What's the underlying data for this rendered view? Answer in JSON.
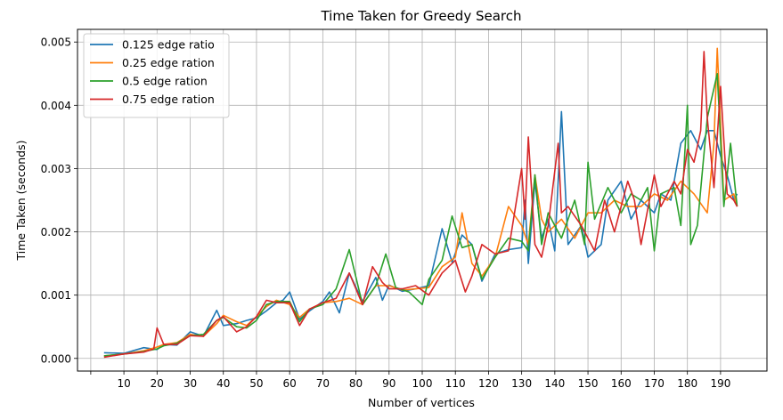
{
  "chart_data": {
    "type": "line",
    "title": "Time Taken for Greedy Search",
    "xlabel": "Number of vertices",
    "ylabel": "Time Taken (seconds)",
    "xlim": [
      -4,
      204
    ],
    "ylim": [
      -0.0002,
      0.0052
    ],
    "x_ticks": [
      0,
      10,
      20,
      30,
      40,
      50,
      60,
      70,
      80,
      90,
      100,
      110,
      120,
      130,
      140,
      150,
      160,
      170,
      180,
      190
    ],
    "x_tick_labels": [
      "",
      "10",
      "20",
      "30",
      "40",
      "50",
      "60",
      "70",
      "80",
      "90",
      "100",
      "110",
      "120",
      "130",
      "140",
      "150",
      "160",
      "170",
      "180",
      "190"
    ],
    "y_ticks": [
      0,
      0.001,
      0.002,
      0.003,
      0.004,
      0.005
    ],
    "y_tick_labels": [
      "0.000",
      "0.001",
      "0.002",
      "0.003",
      "0.004",
      "0.005"
    ],
    "grid": true,
    "legend_position": "top-left",
    "series": [
      {
        "name": "0.125 edge ratio",
        "color": "#1f77b4",
        "points": [
          [
            4,
            9e-05
          ],
          [
            10,
            8e-05
          ],
          [
            16,
            0.00017
          ],
          [
            20,
            0.00014
          ],
          [
            22,
            0.00022
          ],
          [
            26,
            0.00021
          ],
          [
            30,
            0.00042
          ],
          [
            34,
            0.00035
          ],
          [
            38,
            0.00076
          ],
          [
            40,
            0.00052
          ],
          [
            44,
            0.00055
          ],
          [
            47,
            0.0006
          ],
          [
            50,
            0.00064
          ],
          [
            53,
            0.00075
          ],
          [
            56,
            0.00088
          ],
          [
            58,
            0.00092
          ],
          [
            60,
            0.00105
          ],
          [
            63,
            0.00062
          ],
          [
            66,
            0.00075
          ],
          [
            70,
            0.0009
          ],
          [
            72,
            0.00105
          ],
          [
            75,
            0.00072
          ],
          [
            78,
            0.00135
          ],
          [
            82,
            0.0009
          ],
          [
            86,
            0.00128
          ],
          [
            88,
            0.00092
          ],
          [
            90,
            0.00116
          ],
          [
            94,
            0.00106
          ],
          [
            98,
            0.0011
          ],
          [
            102,
            0.00115
          ],
          [
            106,
            0.00205
          ],
          [
            109,
            0.00152
          ],
          [
            112,
            0.00195
          ],
          [
            115,
            0.0018
          ],
          [
            118,
            0.00122
          ],
          [
            122,
            0.00165
          ],
          [
            126,
            0.00172
          ],
          [
            130,
            0.00175
          ],
          [
            131,
            0.0025
          ],
          [
            132,
            0.0015
          ],
          [
            134,
            0.0028
          ],
          [
            136,
            0.0019
          ],
          [
            138,
            0.0022
          ],
          [
            140,
            0.0017
          ],
          [
            142,
            0.0039
          ],
          [
            144,
            0.0018
          ],
          [
            148,
            0.0021
          ],
          [
            150,
            0.0016
          ],
          [
            154,
            0.0018
          ],
          [
            156,
            0.0025
          ],
          [
            160,
            0.0028
          ],
          [
            163,
            0.0022
          ],
          [
            166,
            0.0025
          ],
          [
            170,
            0.0023
          ],
          [
            172,
            0.0026
          ],
          [
            175,
            0.0025
          ],
          [
            178,
            0.0034
          ],
          [
            181,
            0.0036
          ],
          [
            184,
            0.0033
          ],
          [
            186,
            0.0036
          ],
          [
            188,
            0.0036
          ],
          [
            190,
            0.0032
          ],
          [
            192,
            0.0029
          ],
          [
            194,
            0.0025
          ],
          [
            195,
            0.0026
          ]
        ]
      },
      {
        "name": "0.25 edge ration",
        "color": "#ff7f0e",
        "points": [
          [
            4,
            4e-05
          ],
          [
            10,
            7e-05
          ],
          [
            16,
            0.00012
          ],
          [
            20,
            0.00018
          ],
          [
            22,
            0.00022
          ],
          [
            26,
            0.00025
          ],
          [
            30,
            0.00038
          ],
          [
            34,
            0.00035
          ],
          [
            38,
            0.00055
          ],
          [
            40,
            0.00068
          ],
          [
            44,
            0.00058
          ],
          [
            47,
            0.00052
          ],
          [
            50,
            0.00066
          ],
          [
            53,
            0.00082
          ],
          [
            56,
            0.00092
          ],
          [
            60,
            0.00085
          ],
          [
            63,
            0.00065
          ],
          [
            66,
            0.00078
          ],
          [
            70,
            0.00088
          ],
          [
            74,
            0.0009
          ],
          [
            78,
            0.00095
          ],
          [
            82,
            0.00085
          ],
          [
            86,
            0.00115
          ],
          [
            90,
            0.00115
          ],
          [
            94,
            0.00108
          ],
          [
            98,
            0.0011
          ],
          [
            102,
            0.00112
          ],
          [
            106,
            0.00145
          ],
          [
            110,
            0.0016
          ],
          [
            112,
            0.0023
          ],
          [
            115,
            0.0015
          ],
          [
            118,
            0.0013
          ],
          [
            122,
            0.0016
          ],
          [
            126,
            0.0024
          ],
          [
            130,
            0.0021
          ],
          [
            132,
            0.0018
          ],
          [
            134,
            0.0029
          ],
          [
            136,
            0.0022
          ],
          [
            138,
            0.002
          ],
          [
            142,
            0.0022
          ],
          [
            146,
            0.0019
          ],
          [
            150,
            0.0023
          ],
          [
            154,
            0.0023
          ],
          [
            158,
            0.0025
          ],
          [
            162,
            0.0024
          ],
          [
            166,
            0.0024
          ],
          [
            170,
            0.0026
          ],
          [
            174,
            0.0025
          ],
          [
            178,
            0.0028
          ],
          [
            182,
            0.0026
          ],
          [
            186,
            0.0023
          ],
          [
            188,
            0.0034
          ],
          [
            189,
            0.0049
          ],
          [
            191,
            0.0025
          ],
          [
            194,
            0.0026
          ],
          [
            195,
            0.0024
          ]
        ]
      },
      {
        "name": "0.5 edge ration",
        "color": "#2ca02c",
        "points": [
          [
            4,
            4e-05
          ],
          [
            10,
            7e-05
          ],
          [
            16,
            0.00011
          ],
          [
            20,
            0.00015
          ],
          [
            22,
            0.0002
          ],
          [
            26,
            0.00024
          ],
          [
            30,
            0.00036
          ],
          [
            34,
            0.00038
          ],
          [
            38,
            0.0006
          ],
          [
            40,
            0.00065
          ],
          [
            44,
            0.0005
          ],
          [
            47,
            0.00048
          ],
          [
            50,
            0.0006
          ],
          [
            53,
            0.00085
          ],
          [
            56,
            0.0009
          ],
          [
            60,
            0.0009
          ],
          [
            63,
            0.00058
          ],
          [
            66,
            0.00078
          ],
          [
            70,
            0.00085
          ],
          [
            74,
            0.0011
          ],
          [
            78,
            0.00172
          ],
          [
            82,
            0.00085
          ],
          [
            86,
            0.00115
          ],
          [
            89,
            0.00165
          ],
          [
            92,
            0.00112
          ],
          [
            96,
            0.00105
          ],
          [
            100,
            0.00085
          ],
          [
            102,
            0.00125
          ],
          [
            106,
            0.00155
          ],
          [
            109,
            0.00225
          ],
          [
            112,
            0.00175
          ],
          [
            115,
            0.0018
          ],
          [
            118,
            0.00125
          ],
          [
            122,
            0.0016
          ],
          [
            126,
            0.0019
          ],
          [
            130,
            0.00185
          ],
          [
            132,
            0.0017
          ],
          [
            134,
            0.0029
          ],
          [
            136,
            0.0018
          ],
          [
            138,
            0.0023
          ],
          [
            142,
            0.0019
          ],
          [
            146,
            0.0025
          ],
          [
            149,
            0.0018
          ],
          [
            150,
            0.0031
          ],
          [
            152,
            0.0022
          ],
          [
            156,
            0.0027
          ],
          [
            160,
            0.0023
          ],
          [
            163,
            0.0026
          ],
          [
            166,
            0.0025
          ],
          [
            168,
            0.0027
          ],
          [
            170,
            0.0017
          ],
          [
            172,
            0.0026
          ],
          [
            176,
            0.0027
          ],
          [
            178,
            0.0021
          ],
          [
            180,
            0.004
          ],
          [
            181,
            0.0018
          ],
          [
            183,
            0.0021
          ],
          [
            186,
            0.0038
          ],
          [
            189,
            0.0045
          ],
          [
            191,
            0.0024
          ],
          [
            193,
            0.0034
          ],
          [
            195,
            0.0024
          ]
        ]
      },
      {
        "name": "0.75 edge ration",
        "color": "#d62728",
        "points": [
          [
            4,
            2e-05
          ],
          [
            10,
            7e-05
          ],
          [
            16,
            0.0001
          ],
          [
            19,
            0.00015
          ],
          [
            20,
            0.00048
          ],
          [
            22,
            0.00022
          ],
          [
            26,
            0.00022
          ],
          [
            30,
            0.00036
          ],
          [
            34,
            0.00035
          ],
          [
            38,
            0.0006
          ],
          [
            40,
            0.00066
          ],
          [
            44,
            0.00042
          ],
          [
            47,
            0.0005
          ],
          [
            50,
            0.00066
          ],
          [
            53,
            0.00092
          ],
          [
            56,
            0.00088
          ],
          [
            60,
            0.00088
          ],
          [
            63,
            0.00052
          ],
          [
            66,
            0.00078
          ],
          [
            70,
            0.00088
          ],
          [
            74,
            0.00095
          ],
          [
            78,
            0.00135
          ],
          [
            82,
            0.00085
          ],
          [
            85,
            0.00145
          ],
          [
            88,
            0.0012
          ],
          [
            90,
            0.0011
          ],
          [
            94,
            0.0011
          ],
          [
            98,
            0.00115
          ],
          [
            102,
            0.001
          ],
          [
            106,
            0.00135
          ],
          [
            110,
            0.00155
          ],
          [
            113,
            0.00105
          ],
          [
            115,
            0.0013
          ],
          [
            118,
            0.0018
          ],
          [
            122,
            0.00165
          ],
          [
            126,
            0.0017
          ],
          [
            130,
            0.003
          ],
          [
            131,
            0.0022
          ],
          [
            132,
            0.0035
          ],
          [
            134,
            0.0018
          ],
          [
            136,
            0.0016
          ],
          [
            138,
            0.0021
          ],
          [
            141,
            0.0034
          ],
          [
            142,
            0.0023
          ],
          [
            144,
            0.0024
          ],
          [
            148,
            0.0021
          ],
          [
            150,
            0.0019
          ],
          [
            152,
            0.0017
          ],
          [
            155,
            0.0025
          ],
          [
            158,
            0.002
          ],
          [
            162,
            0.0028
          ],
          [
            164,
            0.0025
          ],
          [
            166,
            0.0018
          ],
          [
            170,
            0.0029
          ],
          [
            172,
            0.0024
          ],
          [
            176,
            0.0028
          ],
          [
            178,
            0.0026
          ],
          [
            180,
            0.0033
          ],
          [
            182,
            0.0031
          ],
          [
            184,
            0.0036
          ],
          [
            185,
            0.00485
          ],
          [
            186,
            0.0038
          ],
          [
            188,
            0.0027
          ],
          [
            190,
            0.0043
          ],
          [
            192,
            0.0026
          ],
          [
            194,
            0.0025
          ],
          [
            195,
            0.0024
          ]
        ]
      }
    ]
  }
}
